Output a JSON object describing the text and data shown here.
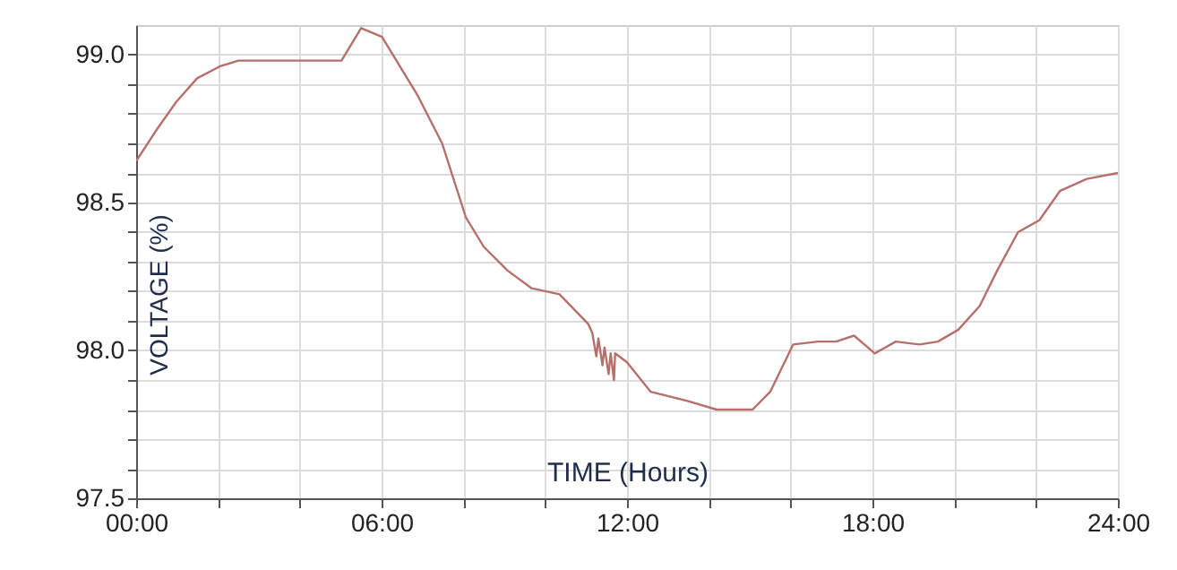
{
  "chart_data": {
    "type": "line",
    "xlabel": "TIME (Hours)",
    "ylabel": "VOLTAGE (%)",
    "x": [
      0,
      0.47,
      0.98,
      1.49,
      2.04,
      2.5,
      4.03,
      5.02,
      5.5,
      6.01,
      6.89,
      7.48,
      8.06,
      8.5,
      9.08,
      9.67,
      10.35,
      11.05,
      11.15,
      11.25,
      11.3,
      11.4,
      11.45,
      11.55,
      11.6,
      11.68,
      11.71,
      12.0,
      12.58,
      13.46,
      14.19,
      15.07,
      15.5,
      16.06,
      16.67,
      17.11,
      17.55,
      18.06,
      18.57,
      19.15,
      19.6,
      20.1,
      20.62,
      21.05,
      21.56,
      22.08,
      22.59,
      23.24,
      24.0
    ],
    "series": [
      {
        "color": "#b5706b",
        "values": [
          98.64,
          98.74,
          98.84,
          98.92,
          98.96,
          98.98,
          98.98,
          98.98,
          99.09,
          99.06,
          98.86,
          98.7,
          98.45,
          98.35,
          98.27,
          98.21,
          98.19,
          98.09,
          98.06,
          97.98,
          98.04,
          97.95,
          98.01,
          97.92,
          97.99,
          97.9,
          97.99,
          97.96,
          97.86,
          97.83,
          97.8,
          97.8,
          97.86,
          98.02,
          98.03,
          98.03,
          98.05,
          97.99,
          98.03,
          98.02,
          98.03,
          98.07,
          98.15,
          98.27,
          98.4,
          98.44,
          98.54,
          98.58,
          98.6
        ]
      }
    ],
    "xlim": [
      0,
      24
    ],
    "xticks": [
      {
        "value": 0,
        "label": "00:00"
      },
      {
        "value": 2,
        "label": null
      },
      {
        "value": 4,
        "label": null
      },
      {
        "value": 6,
        "label": "06:00"
      },
      {
        "value": 8,
        "label": null
      },
      {
        "value": 10,
        "label": null
      },
      {
        "value": 12,
        "label": "12:00"
      },
      {
        "value": 14,
        "label": null
      },
      {
        "value": 16,
        "label": null
      },
      {
        "value": 18,
        "label": "18:00"
      },
      {
        "value": 20,
        "label": null
      },
      {
        "value": 22,
        "label": null
      },
      {
        "value": 24,
        "label": "24:00"
      }
    ],
    "ylim": [
      97.5,
      99.1
    ],
    "yticks": [
      97.5,
      {
        "value": 97.6,
        "label": null
      },
      {
        "value": 97.7,
        "label": null
      },
      {
        "value": 97.8,
        "label": null
      },
      {
        "value": 97.9,
        "label": null
      },
      {
        "value": 98.0,
        "label": "98.0"
      },
      {
        "value": 98.1,
        "label": null
      },
      {
        "value": 98.2,
        "label": null
      },
      {
        "value": 98.3,
        "label": null
      },
      {
        "value": 98.4,
        "label": null
      },
      98.5,
      {
        "value": 98.6,
        "label": null
      },
      {
        "value": 98.7,
        "label": null
      },
      {
        "value": 98.8,
        "label": null
      },
      {
        "value": 98.9,
        "label": null
      },
      {
        "value": 99.0,
        "label": "99.0"
      }
    ],
    "grid": true,
    "marker": "none",
    "line_style": "solid"
  }
}
